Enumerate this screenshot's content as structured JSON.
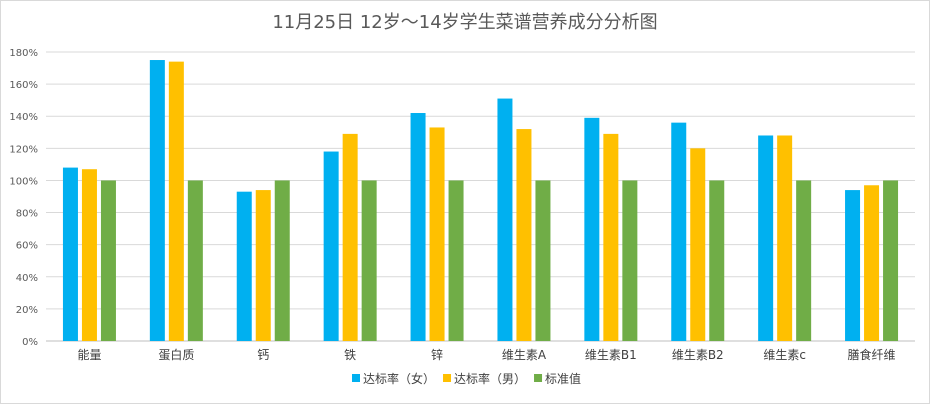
{
  "chart_data": {
    "type": "bar",
    "title": "11月25日 12岁～14岁学生菜谱营养成分分析图",
    "categories": [
      "能量",
      "蛋白质",
      "钙",
      "铁",
      "锌",
      "维生素A",
      "维生素B1",
      "维生素B2",
      "维生素c",
      "膳食纤维"
    ],
    "series": [
      {
        "name": "达标率（女）",
        "color": "#00b0f0",
        "values": [
          108,
          175,
          93,
          118,
          142,
          151,
          139,
          136,
          128,
          94
        ]
      },
      {
        "name": "达标率（男）",
        "color": "#ffc000",
        "values": [
          107,
          174,
          94,
          129,
          133,
          132,
          129,
          120,
          128,
          97
        ]
      },
      {
        "name": "标准值",
        "color": "#70ad47",
        "values": [
          100,
          100,
          100,
          100,
          100,
          100,
          100,
          100,
          100,
          100
        ]
      }
    ],
    "ylim": [
      0,
      180
    ],
    "yticks": [
      0,
      20,
      40,
      60,
      80,
      100,
      120,
      140,
      160,
      180
    ],
    "ytick_labels": [
      "0%",
      "20%",
      "40%",
      "60%",
      "80%",
      "100%",
      "120%",
      "140%",
      "160%",
      "180%"
    ],
    "grid": true,
    "legend_position": "bottom"
  }
}
